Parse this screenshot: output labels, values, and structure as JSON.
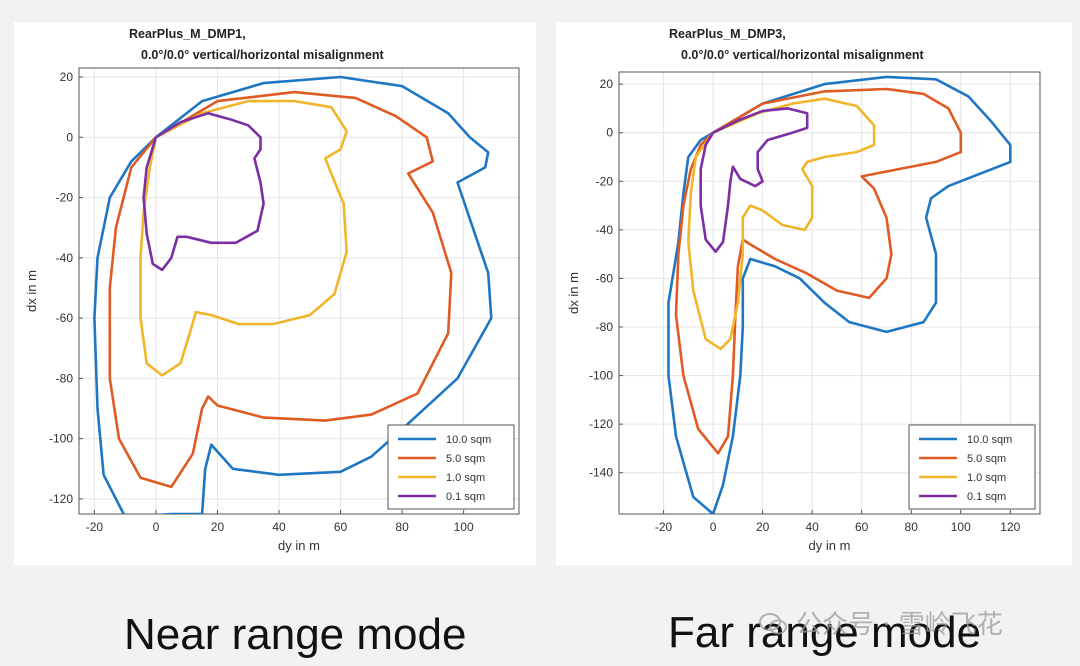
{
  "chart_data": [
    {
      "type": "line",
      "title_line1": "RearPlus_M_DMP1,",
      "title_line2": "0.0°/0.0° vertical/horizontal misalignment",
      "xlabel": "dy in m",
      "ylabel": "dx in m",
      "xlim": [
        -25,
        118
      ],
      "ylim": [
        -125,
        23
      ],
      "xticks": [
        -20,
        0,
        20,
        40,
        60,
        80,
        100
      ],
      "yticks": [
        20,
        0,
        -20,
        -40,
        -60,
        -80,
        -100,
        -120
      ],
      "grid": true,
      "legend_position": "bottom-right",
      "series": [
        {
          "name": "10.0 sqm",
          "color": "#1f77c4",
          "points": [
            [
              0,
              0
            ],
            [
              15,
              12
            ],
            [
              35,
              18
            ],
            [
              60,
              20
            ],
            [
              80,
              17
            ],
            [
              95,
              8
            ],
            [
              102,
              0
            ],
            [
              108,
              -5
            ],
            [
              107,
              -10
            ],
            [
              98,
              -15
            ],
            [
              103,
              -30
            ],
            [
              108,
              -45
            ],
            [
              109,
              -60
            ],
            [
              98,
              -80
            ],
            [
              82,
              -95
            ],
            [
              70,
              -106
            ],
            [
              60,
              -111
            ],
            [
              40,
              -112
            ],
            [
              25,
              -110
            ],
            [
              18,
              -102
            ],
            [
              16,
              -110
            ],
            [
              15,
              -125
            ],
            [
              5,
              -125
            ],
            [
              -10,
              -126
            ],
            [
              -17,
              -112
            ],
            [
              -19,
              -90
            ],
            [
              -20,
              -60
            ],
            [
              -19,
              -40
            ],
            [
              -15,
              -20
            ],
            [
              -8,
              -8
            ],
            [
              0,
              0
            ]
          ]
        },
        {
          "name": "5.0 sqm",
          "color": "#e05b24",
          "points": [
            [
              0,
              0
            ],
            [
              20,
              12
            ],
            [
              45,
              15
            ],
            [
              65,
              13
            ],
            [
              78,
              7
            ],
            [
              88,
              0
            ],
            [
              90,
              -8
            ],
            [
              82,
              -12
            ],
            [
              90,
              -25
            ],
            [
              96,
              -45
            ],
            [
              95,
              -65
            ],
            [
              85,
              -85
            ],
            [
              70,
              -92
            ],
            [
              55,
              -94
            ],
            [
              35,
              -93
            ],
            [
              20,
              -89
            ],
            [
              17,
              -86
            ],
            [
              15,
              -90
            ],
            [
              12,
              -105
            ],
            [
              5,
              -116
            ],
            [
              -5,
              -113
            ],
            [
              -12,
              -100
            ],
            [
              -15,
              -80
            ],
            [
              -15,
              -50
            ],
            [
              -13,
              -30
            ],
            [
              -8,
              -10
            ],
            [
              0,
              0
            ]
          ]
        },
        {
          "name": "1.0 sqm",
          "color": "#f0b52a",
          "points": [
            [
              0,
              0
            ],
            [
              15,
              8
            ],
            [
              30,
              12
            ],
            [
              45,
              12
            ],
            [
              57,
              10
            ],
            [
              62,
              2
            ],
            [
              60,
              -4
            ],
            [
              55,
              -7
            ],
            [
              57,
              -12
            ],
            [
              61,
              -22
            ],
            [
              62,
              -38
            ],
            [
              58,
              -52
            ],
            [
              50,
              -59
            ],
            [
              38,
              -62
            ],
            [
              27,
              -62
            ],
            [
              18,
              -59
            ],
            [
              13,
              -58
            ],
            [
              11,
              -65
            ],
            [
              8,
              -75
            ],
            [
              2,
              -79
            ],
            [
              -3,
              -75
            ],
            [
              -5,
              -60
            ],
            [
              -5,
              -40
            ],
            [
              -4,
              -25
            ],
            [
              -2,
              -10
            ],
            [
              0,
              0
            ]
          ]
        },
        {
          "name": "0.1 sqm",
          "color": "#7b2fa3",
          "points": [
            [
              0,
              0
            ],
            [
              8,
              5
            ],
            [
              17,
              8
            ],
            [
              24,
              6
            ],
            [
              30,
              4
            ],
            [
              34,
              0
            ],
            [
              34,
              -4
            ],
            [
              32,
              -7
            ],
            [
              34,
              -15
            ],
            [
              35,
              -22
            ],
            [
              33,
              -31
            ],
            [
              26,
              -35
            ],
            [
              18,
              -35
            ],
            [
              10,
              -33
            ],
            [
              7,
              -33
            ],
            [
              5,
              -40
            ],
            [
              2,
              -44
            ],
            [
              -1,
              -42
            ],
            [
              -3,
              -32
            ],
            [
              -4,
              -20
            ],
            [
              -3,
              -10
            ],
            [
              0,
              0
            ]
          ]
        }
      ]
    },
    {
      "type": "line",
      "title_line1": "RearPlus_M_DMP3,",
      "title_line2": "0.0°/0.0° vertical/horizontal misalignment",
      "xlabel": "dy in m",
      "ylabel": "dx in m",
      "xlim": [
        -38,
        132
      ],
      "ylim": [
        -157,
        25
      ],
      "xticks": [
        -20,
        0,
        20,
        40,
        60,
        80,
        100,
        120
      ],
      "yticks": [
        20,
        0,
        -20,
        -40,
        -60,
        -80,
        -100,
        -120,
        -140
      ],
      "grid": true,
      "legend_position": "bottom-right",
      "series": [
        {
          "name": "10.0 sqm",
          "color": "#1f77c4",
          "points": [
            [
              0,
              0
            ],
            [
              20,
              12
            ],
            [
              45,
              20
            ],
            [
              70,
              23
            ],
            [
              90,
              22
            ],
            [
              103,
              15
            ],
            [
              112,
              5
            ],
            [
              120,
              -5
            ],
            [
              120,
              -12
            ],
            [
              105,
              -18
            ],
            [
              95,
              -22
            ],
            [
              88,
              -27
            ],
            [
              86,
              -35
            ],
            [
              90,
              -50
            ],
            [
              90,
              -70
            ],
            [
              85,
              -78
            ],
            [
              70,
              -82
            ],
            [
              55,
              -78
            ],
            [
              45,
              -70
            ],
            [
              35,
              -60
            ],
            [
              25,
              -55
            ],
            [
              15,
              -52
            ],
            [
              12,
              -60
            ],
            [
              12,
              -80
            ],
            [
              11,
              -100
            ],
            [
              8,
              -125
            ],
            [
              4,
              -145
            ],
            [
              0,
              -157
            ],
            [
              -8,
              -150
            ],
            [
              -15,
              -125
            ],
            [
              -18,
              -100
            ],
            [
              -18,
              -70
            ],
            [
              -14,
              -45
            ],
            [
              -12,
              -25
            ],
            [
              -10,
              -10
            ],
            [
              -5,
              -3
            ],
            [
              0,
              0
            ]
          ]
        },
        {
          "name": "5.0 sqm",
          "color": "#e05b24",
          "points": [
            [
              0,
              0
            ],
            [
              20,
              12
            ],
            [
              45,
              17
            ],
            [
              70,
              18
            ],
            [
              85,
              16
            ],
            [
              95,
              10
            ],
            [
              100,
              0
            ],
            [
              100,
              -8
            ],
            [
              90,
              -12
            ],
            [
              75,
              -15
            ],
            [
              60,
              -18
            ],
            [
              65,
              -23
            ],
            [
              70,
              -35
            ],
            [
              72,
              -50
            ],
            [
              70,
              -60
            ],
            [
              63,
              -68
            ],
            [
              50,
              -65
            ],
            [
              38,
              -58
            ],
            [
              25,
              -52
            ],
            [
              15,
              -46
            ],
            [
              12,
              -44
            ],
            [
              10,
              -55
            ],
            [
              9,
              -75
            ],
            [
              8,
              -100
            ],
            [
              6,
              -125
            ],
            [
              2,
              -132
            ],
            [
              -6,
              -122
            ],
            [
              -12,
              -100
            ],
            [
              -15,
              -75
            ],
            [
              -14,
              -50
            ],
            [
              -12,
              -30
            ],
            [
              -9,
              -15
            ],
            [
              -5,
              -5
            ],
            [
              0,
              0
            ]
          ]
        },
        {
          "name": "1.0 sqm",
          "color": "#f0b52a",
          "points": [
            [
              0,
              0
            ],
            [
              18,
              8
            ],
            [
              32,
              12
            ],
            [
              45,
              14
            ],
            [
              58,
              11
            ],
            [
              65,
              3
            ],
            [
              65,
              -5
            ],
            [
              58,
              -8
            ],
            [
              45,
              -10
            ],
            [
              38,
              -12
            ],
            [
              36,
              -15
            ],
            [
              40,
              -22
            ],
            [
              40,
              -35
            ],
            [
              37,
              -40
            ],
            [
              28,
              -38
            ],
            [
              20,
              -32
            ],
            [
              15,
              -30
            ],
            [
              12,
              -35
            ],
            [
              12,
              -50
            ],
            [
              10,
              -70
            ],
            [
              7,
              -85
            ],
            [
              3,
              -89
            ],
            [
              -3,
              -85
            ],
            [
              -8,
              -65
            ],
            [
              -10,
              -45
            ],
            [
              -9,
              -25
            ],
            [
              -7,
              -10
            ],
            [
              0,
              0
            ]
          ]
        },
        {
          "name": "0.1 sqm",
          "color": "#7b2fa3",
          "points": [
            [
              0,
              0
            ],
            [
              10,
              5
            ],
            [
              20,
              9
            ],
            [
              30,
              10
            ],
            [
              38,
              8
            ],
            [
              38,
              2
            ],
            [
              32,
              0
            ],
            [
              22,
              -3
            ],
            [
              18,
              -8
            ],
            [
              18,
              -15
            ],
            [
              20,
              -20
            ],
            [
              17,
              -22
            ],
            [
              11,
              -19
            ],
            [
              8,
              -14
            ],
            [
              7,
              -20
            ],
            [
              6,
              -30
            ],
            [
              4,
              -45
            ],
            [
              1,
              -49
            ],
            [
              -3,
              -44
            ],
            [
              -5,
              -30
            ],
            [
              -5,
              -15
            ],
            [
              -3,
              -5
            ],
            [
              0,
              0
            ]
          ]
        }
      ]
    }
  ],
  "captions": {
    "left": "Near range mode",
    "right": "Far range mode"
  },
  "watermark": {
    "text": "公众号 · 雪岭飞花",
    "icon": "wechat-icon"
  }
}
